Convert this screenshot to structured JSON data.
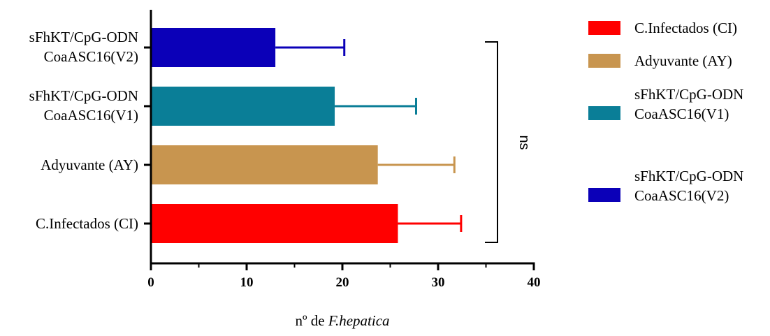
{
  "chart_data": {
    "type": "bar",
    "orientation": "horizontal",
    "categories": [
      [
        "C.Infectados (CI)"
      ],
      [
        "Adyuvante (AY)"
      ],
      [
        "sFhKT/CpG-ODN",
        "CoaASC16(V1)"
      ],
      [
        "sFhKT/CpG-ODN",
        "CoaASC16(V2)"
      ]
    ],
    "values": [
      25.8,
      23.7,
      19.2,
      13.0
    ],
    "errors": [
      6.6,
      8.0,
      8.5,
      7.2
    ],
    "colors": [
      "#ff0000",
      "#c8954f",
      "#0a7e97",
      "#0b00b8"
    ],
    "xlabel_prefix": "nº de ",
    "xlabel_italic": "F.hepatica",
    "xlim": [
      0,
      40
    ],
    "xticks": [
      0,
      10,
      20,
      30,
      40
    ],
    "grid": false,
    "significance": {
      "label": "ns",
      "from_category": 0,
      "to_category": 3
    },
    "legend": {
      "position": "right",
      "entries": [
        {
          "label": [
            "C.Infectados (CI)"
          ],
          "color": "#ff0000"
        },
        {
          "label": [
            "Adyuvante (AY)"
          ],
          "color": "#c8954f"
        },
        {
          "label": [
            "sFhKT/CpG-ODN",
            "CoaASC16(V1)"
          ],
          "color": "#0a7e97"
        },
        {
          "label": [
            "sFhKT/CpG-ODN",
            "CoaASC16(V2)"
          ],
          "color": "#0b00b8"
        }
      ]
    }
  }
}
